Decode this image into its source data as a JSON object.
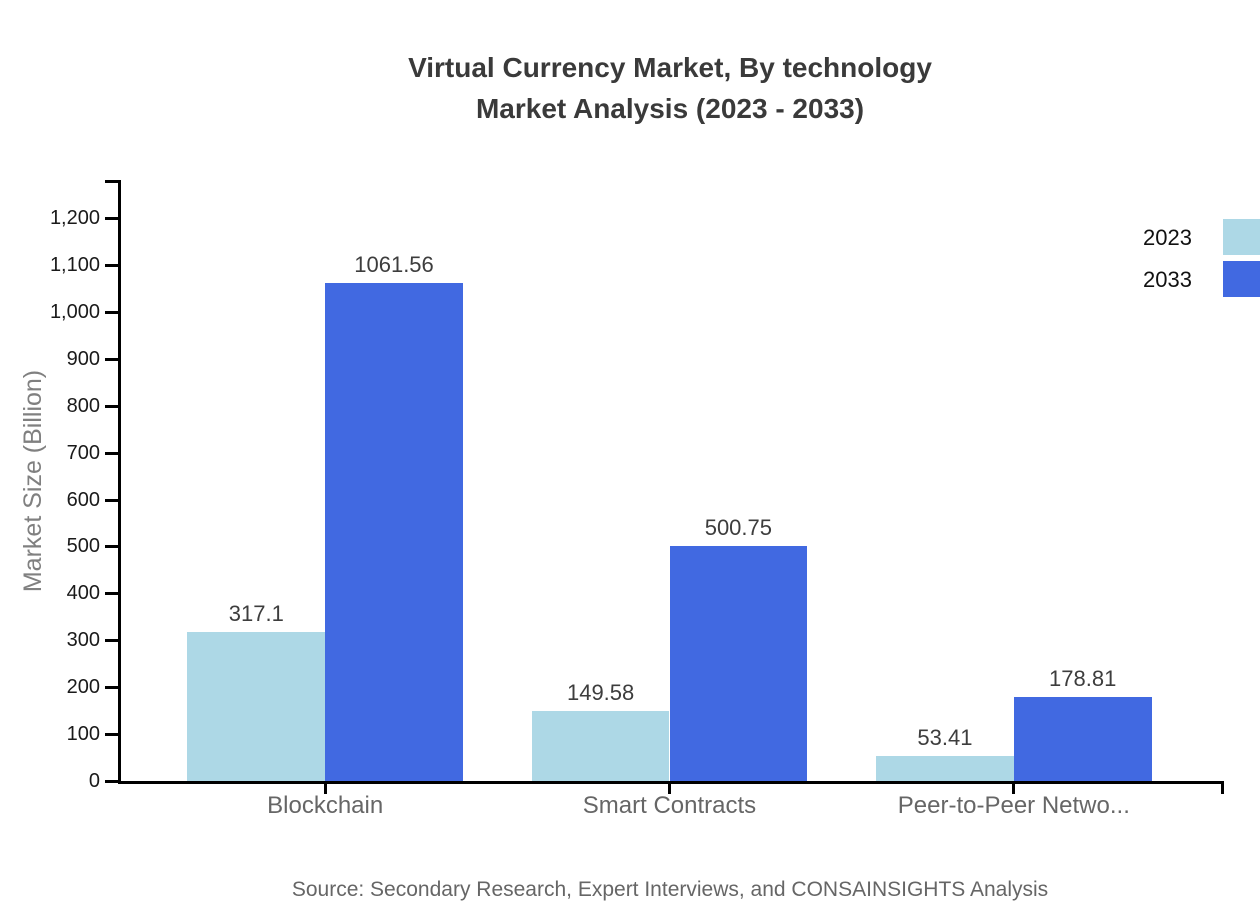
{
  "title": {
    "lines": [
      "Virtual Currency Market, By technology",
      "Market Analysis (2023 - 2033)"
    ]
  },
  "chart_data": {
    "type": "bar",
    "categories": [
      "Blockchain",
      "Smart Contracts",
      "Peer-to-Peer Netwo..."
    ],
    "series": [
      {
        "name": "2023",
        "color": "#add8e6",
        "values": [
          317.1,
          149.58,
          53.41
        ]
      },
      {
        "name": "2033",
        "color": "#4169e1",
        "values": [
          1061.56,
          500.75,
          178.81
        ]
      }
    ],
    "value_labels": [
      [
        "317.1",
        "149.58",
        "53.41"
      ],
      [
        "1061.56",
        "500.75",
        "178.81"
      ]
    ],
    "ylabel": "Market Size (Billion)",
    "xlabel": "",
    "ylim": [
      0,
      1280
    ],
    "ytick_max": 1200,
    "ytick_step": 100,
    "grid": false,
    "legend_position": "top-right",
    "legend_labels": [
      "2023",
      "2033"
    ]
  },
  "source": "Source: Secondary Research, Expert Interviews, and CONSAINSIGHTS Analysis",
  "colors": {
    "series_2023": "#add8e6",
    "series_2033": "#4169e1",
    "axis": "#000000",
    "title_text": "#3a3a3a",
    "category_text": "#666666",
    "source_text": "#666666",
    "y_axis_title_text": "#808080"
  }
}
